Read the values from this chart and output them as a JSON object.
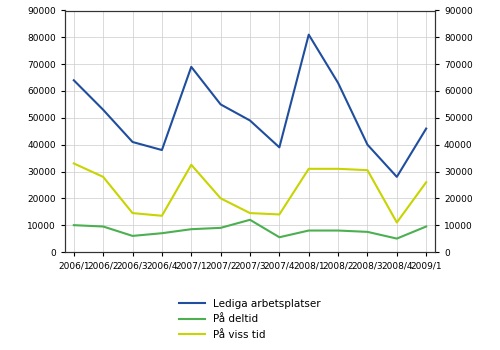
{
  "x_labels": [
    "2006/1",
    "2006/2",
    "2006/3",
    "2006/4",
    "2007/1",
    "2007/2",
    "2007/3",
    "2007/4",
    "2008/1",
    "2008/2",
    "2008/3",
    "2008/4",
    "2009/1"
  ],
  "lediga": [
    64000,
    53000,
    41000,
    38000,
    69000,
    55000,
    49000,
    39000,
    81000,
    63000,
    40000,
    28000,
    46000
  ],
  "deltid": [
    10000,
    9500,
    6000,
    7000,
    8500,
    9000,
    12000,
    5500,
    8000,
    8000,
    7500,
    5000,
    9500
  ],
  "viss_tid": [
    33000,
    28000,
    14500,
    13500,
    32500,
    20000,
    14500,
    14000,
    31000,
    31000,
    30500,
    11000,
    26000
  ],
  "lediga_color": "#1f4e9e",
  "deltid_color": "#4caf50",
  "viss_color": "#c8d400",
  "ylim": [
    0,
    90000
  ],
  "yticks": [
    0,
    10000,
    20000,
    30000,
    40000,
    50000,
    60000,
    70000,
    80000,
    90000
  ],
  "legend_labels": [
    "Lediga arbetsplatser",
    "På deltid",
    "På viss tid"
  ],
  "bg_color": "#ffffff",
  "grid_color": "#cccccc",
  "line_width": 1.5
}
